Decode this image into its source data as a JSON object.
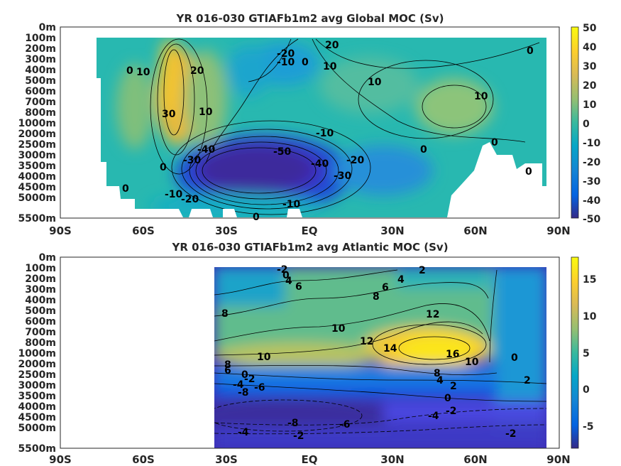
{
  "chart_data": [
    {
      "type": "heatmap",
      "title": "YR 016-030 GTIAFb1m2 avg  Global MOC (Sv)",
      "xlabel": "",
      "ylabel": "",
      "x_ticks": [
        "90S",
        "60S",
        "30S",
        "EQ",
        "30N",
        "60N",
        "90N"
      ],
      "y_ticks": [
        "0m",
        "100m",
        "200m",
        "300m",
        "400m",
        "500m",
        "600m",
        "700m",
        "800m",
        "1000m",
        "2000m",
        "2500m",
        "3000m",
        "3500m",
        "4000m",
        "4500m",
        "5000m",
        "5500m"
      ],
      "colorbar": {
        "ticks": [
          50,
          40,
          30,
          20,
          10,
          0,
          -10,
          -20,
          -30,
          -40,
          -50
        ],
        "range": [
          -50,
          50
        ],
        "colormap": "parula"
      },
      "contour_labels": [
        {
          "text": "-20",
          "lat": -5,
          "depth": "200m"
        },
        {
          "text": "-10",
          "lat": -7,
          "depth": "300m"
        },
        {
          "text": "0",
          "lat": -1,
          "depth": "300m"
        },
        {
          "text": "20",
          "lat": 8,
          "depth": "150m"
        },
        {
          "text": "10",
          "lat": 7,
          "depth": "350m"
        },
        {
          "text": "0",
          "lat": 78,
          "depth": "200m"
        },
        {
          "text": "0",
          "lat": -62,
          "depth": "350m"
        },
        {
          "text": "10",
          "lat": -58,
          "depth": "350m"
        },
        {
          "text": "20",
          "lat": -40,
          "depth": "350m"
        },
        {
          "text": "10",
          "lat": 22,
          "depth": "550m"
        },
        {
          "text": "10",
          "lat": 58,
          "depth": "650m"
        },
        {
          "text": "30",
          "lat": -48,
          "depth": "800m"
        },
        {
          "text": "10",
          "lat": -37,
          "depth": "900m"
        },
        {
          "text": "-10",
          "lat": 5,
          "depth": "1800m"
        },
        {
          "text": "0",
          "lat": 62,
          "depth": "1800m"
        },
        {
          "text": "0",
          "lat": 38,
          "depth": "2000m"
        },
        {
          "text": "-50",
          "lat": -10,
          "depth": "2000m"
        },
        {
          "text": "-20",
          "lat": 15,
          "depth": "2500m"
        },
        {
          "text": "-40",
          "lat": -37,
          "depth": "2000m"
        },
        {
          "text": "-30",
          "lat": -42,
          "depth": "2500m"
        },
        {
          "text": "-40",
          "lat": 4,
          "depth": "2700m"
        },
        {
          "text": "-30",
          "lat": 11,
          "depth": "3200m"
        },
        {
          "text": "0",
          "lat": -50,
          "depth": "2700m"
        },
        {
          "text": "0",
          "lat": 77,
          "depth": "3000m"
        },
        {
          "text": "0",
          "lat": -64,
          "depth": "4000m"
        },
        {
          "text": "-10",
          "lat": -46,
          "depth": "4500m"
        },
        {
          "text": "-20",
          "lat": -40,
          "depth": "4700m"
        },
        {
          "text": "-10",
          "lat": -5,
          "depth": "5000m"
        },
        {
          "text": "0",
          "lat": -18,
          "depth": "5500m"
        }
      ]
    },
    {
      "type": "heatmap",
      "title": "YR 016-030 GTIAFb1m2 avg  Atlantic MOC (Sv)",
      "xlabel": "",
      "ylabel": "",
      "x_ticks": [
        "90S",
        "60S",
        "30S",
        "EQ",
        "30N",
        "60N",
        "90N"
      ],
      "y_ticks": [
        "0m",
        "100m",
        "200m",
        "300m",
        "400m",
        "500m",
        "600m",
        "700m",
        "800m",
        "1000m",
        "2000m",
        "2500m",
        "3000m",
        "3500m",
        "4000m",
        "4500m",
        "5000m",
        "5500m"
      ],
      "colorbar": {
        "ticks": [
          15,
          10,
          5,
          0,
          -5
        ],
        "range": [
          -8,
          18
        ],
        "colormap": "parula"
      },
      "contour_labels": [
        {
          "text": "-2",
          "lat": -10,
          "depth": "100m"
        },
        {
          "text": "0",
          "lat": -9,
          "depth": "200m"
        },
        {
          "text": "4",
          "lat": -8,
          "depth": "250m"
        },
        {
          "text": "6",
          "lat": -3,
          "depth": "300m"
        },
        {
          "text": "2",
          "lat": 48,
          "depth": "100m"
        },
        {
          "text": "4",
          "lat": 40,
          "depth": "250m"
        },
        {
          "text": "6",
          "lat": 33,
          "depth": "300m"
        },
        {
          "text": "8",
          "lat": 28,
          "depth": "400m"
        },
        {
          "text": "8",
          "lat": -28,
          "depth": "600m"
        },
        {
          "text": "12",
          "lat": 52,
          "depth": "600m"
        },
        {
          "text": "10",
          "lat": 11,
          "depth": "700m"
        },
        {
          "text": "12",
          "lat": 24,
          "depth": "900m"
        },
        {
          "text": "14",
          "lat": 34,
          "depth": "1000m"
        },
        {
          "text": "16",
          "lat": 60,
          "depth": "1500m"
        },
        {
          "text": "10",
          "lat": 65,
          "depth": "1500m"
        },
        {
          "text": "0",
          "lat": 78,
          "depth": "1500m"
        },
        {
          "text": "10",
          "lat": -17,
          "depth": "1500m"
        },
        {
          "text": "8",
          "lat": -29,
          "depth": "2000m"
        },
        {
          "text": "6",
          "lat": -30,
          "depth": "2200m"
        },
        {
          "text": "0",
          "lat": -22,
          "depth": "2500m"
        },
        {
          "text": "-2",
          "lat": -19,
          "depth": "2500m"
        },
        {
          "text": "-4",
          "lat": -24,
          "depth": "3000m"
        },
        {
          "text": "-6",
          "lat": -16,
          "depth": "3000m"
        },
        {
          "text": "-8",
          "lat": -22,
          "depth": "3200m"
        },
        {
          "text": "8",
          "lat": 43,
          "depth": "2300m"
        },
        {
          "text": "4",
          "lat": 44,
          "depth": "2500m"
        },
        {
          "text": "2",
          "lat": 50,
          "depth": "2700m"
        },
        {
          "text": "2",
          "lat": 76,
          "depth": "2500m"
        },
        {
          "text": "0",
          "lat": 48,
          "depth": "3500m"
        },
        {
          "text": "-2",
          "lat": 50,
          "depth": "3700m"
        },
        {
          "text": "-4",
          "lat": 43,
          "depth": "4000m"
        },
        {
          "text": "-8",
          "lat": -4,
          "depth": "4500m"
        },
        {
          "text": "-6",
          "lat": 14,
          "depth": "4500m"
        },
        {
          "text": "-4",
          "lat": -22,
          "depth": "5000m"
        },
        {
          "text": "-2",
          "lat": -3,
          "depth": "5000m"
        },
        {
          "text": "-2",
          "lat": 73,
          "depth": "5000m"
        }
      ]
    }
  ]
}
